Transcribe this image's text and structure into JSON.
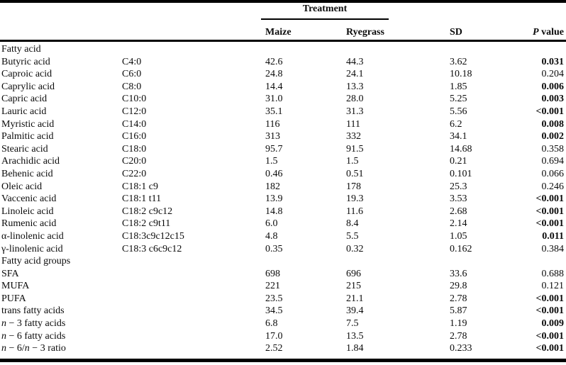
{
  "header": {
    "treatment": "Treatment",
    "col_maize": "Maize",
    "col_ryegrass": "Ryegrass",
    "col_sd": "SD",
    "col_p_italic": "P",
    "col_p_rest": " value"
  },
  "rows": [
    {
      "type": "section",
      "name_parts": [
        {
          "t": "Fatty acid"
        }
      ],
      "notation": "",
      "maize": "",
      "ryegrass": "",
      "sd": "",
      "p": "",
      "p_bold": false
    },
    {
      "type": "data",
      "name_parts": [
        {
          "t": "Butyric acid"
        }
      ],
      "notation": "C4:0",
      "maize": "42.6",
      "ryegrass": "44.3",
      "sd": "3.62",
      "p": "0.031",
      "p_bold": true
    },
    {
      "type": "data",
      "name_parts": [
        {
          "t": "Caproic acid"
        }
      ],
      "notation": "C6:0",
      "maize": "24.8",
      "ryegrass": "24.1",
      "sd": "10.18",
      "p": "0.204",
      "p_bold": false
    },
    {
      "type": "data",
      "name_parts": [
        {
          "t": "Caprylic acid"
        }
      ],
      "notation": "C8:0",
      "maize": "14.4",
      "ryegrass": "13.3",
      "sd": "1.85",
      "p": "0.006",
      "p_bold": true
    },
    {
      "type": "data",
      "name_parts": [
        {
          "t": "Capric acid"
        }
      ],
      "notation": "C10:0",
      "maize": "31.0",
      "ryegrass": "28.0",
      "sd": "5.25",
      "p": "0.003",
      "p_bold": true
    },
    {
      "type": "data",
      "name_parts": [
        {
          "t": "Lauric acid"
        }
      ],
      "notation": "C12:0",
      "maize": "35.1",
      "ryegrass": "31.3",
      "sd": "5.56",
      "p": "<0.001",
      "p_bold": true
    },
    {
      "type": "data",
      "name_parts": [
        {
          "t": "Myristic acid"
        }
      ],
      "notation": "C14:0",
      "maize": "116",
      "ryegrass": "111",
      "sd": "6.2",
      "p": "0.008",
      "p_bold": true
    },
    {
      "type": "data",
      "name_parts": [
        {
          "t": "Palmitic acid"
        }
      ],
      "notation": "C16:0",
      "maize": "313",
      "ryegrass": "332",
      "sd": "34.1",
      "p": "0.002",
      "p_bold": true
    },
    {
      "type": "data",
      "name_parts": [
        {
          "t": "Stearic acid"
        }
      ],
      "notation": "C18:0",
      "maize": "95.7",
      "ryegrass": "91.5",
      "sd": "14.68",
      "p": "0.358",
      "p_bold": false
    },
    {
      "type": "data",
      "name_parts": [
        {
          "t": "Arachidic acid"
        }
      ],
      "notation": "C20:0",
      "maize": "1.5",
      "ryegrass": "1.5",
      "sd": "0.21",
      "p": "0.694",
      "p_bold": false
    },
    {
      "type": "data",
      "name_parts": [
        {
          "t": "Behenic acid"
        }
      ],
      "notation": "C22:0",
      "maize": "0.46",
      "ryegrass": "0.51",
      "sd": "0.101",
      "p": "0.066",
      "p_bold": false
    },
    {
      "type": "data",
      "name_parts": [
        {
          "t": "Oleic acid"
        }
      ],
      "notation": "C18:1 c9",
      "maize": "182",
      "ryegrass": "178",
      "sd": "25.3",
      "p": "0.246",
      "p_bold": false
    },
    {
      "type": "data",
      "name_parts": [
        {
          "t": "Vaccenic acid"
        }
      ],
      "notation": "C18:1 t11",
      "maize": "13.9",
      "ryegrass": "19.3",
      "sd": "3.53",
      "p": "<0.001",
      "p_bold": true
    },
    {
      "type": "data",
      "name_parts": [
        {
          "t": "Linoleic acid"
        }
      ],
      "notation": "C18:2 c9c12",
      "maize": "14.8",
      "ryegrass": "11.6",
      "sd": "2.68",
      "p": "<0.001",
      "p_bold": true
    },
    {
      "type": "data",
      "name_parts": [
        {
          "t": "Rumenic acid"
        }
      ],
      "notation": "C18:2 c9t11",
      "maize": "6.0",
      "ryegrass": "8.4",
      "sd": "2.14",
      "p": "<0.001",
      "p_bold": true
    },
    {
      "type": "data",
      "name_parts": [
        {
          "t": "α-linolenic acid"
        }
      ],
      "notation": "C18:3c9c12c15",
      "maize": "4.8",
      "ryegrass": "5.5",
      "sd": "1.05",
      "p": "0.011",
      "p_bold": true
    },
    {
      "type": "data",
      "name_parts": [
        {
          "t": "γ-linolenic acid"
        }
      ],
      "notation": "C18:3 c6c9c12",
      "maize": "0.35",
      "ryegrass": "0.32",
      "sd": "0.162",
      "p": "0.384",
      "p_bold": false
    },
    {
      "type": "section",
      "name_parts": [
        {
          "t": "Fatty acid groups"
        }
      ],
      "notation": "",
      "maize": "",
      "ryegrass": "",
      "sd": "",
      "p": "",
      "p_bold": false
    },
    {
      "type": "data",
      "name_parts": [
        {
          "t": "SFA"
        }
      ],
      "notation": "",
      "maize": "698",
      "ryegrass": "696",
      "sd": "33.6",
      "p": "0.688",
      "p_bold": false
    },
    {
      "type": "data",
      "name_parts": [
        {
          "t": "MUFA"
        }
      ],
      "notation": "",
      "maize": "221",
      "ryegrass": "215",
      "sd": "29.8",
      "p": "0.121",
      "p_bold": false
    },
    {
      "type": "data",
      "name_parts": [
        {
          "t": "PUFA"
        }
      ],
      "notation": "",
      "maize": "23.5",
      "ryegrass": "21.1",
      "sd": "2.78",
      "p": "<0.001",
      "p_bold": true
    },
    {
      "type": "data",
      "name_parts": [
        {
          "t": "trans fatty acids"
        }
      ],
      "notation": "",
      "maize": "34.5",
      "ryegrass": "39.4",
      "sd": "5.87",
      "p": "<0.001",
      "p_bold": true
    },
    {
      "type": "data",
      "name_parts": [
        {
          "t": "n",
          "i": true
        },
        {
          "t": " − 3 fatty acids"
        }
      ],
      "notation": "",
      "maize": "6.8",
      "ryegrass": "7.5",
      "sd": "1.19",
      "p": "0.009",
      "p_bold": true
    },
    {
      "type": "data",
      "name_parts": [
        {
          "t": "n",
          "i": true
        },
        {
          "t": " − 6 fatty acids"
        }
      ],
      "notation": "",
      "maize": "17.0",
      "ryegrass": "13.5",
      "sd": "2.78",
      "p": "<0.001",
      "p_bold": true
    },
    {
      "type": "data",
      "name_parts": [
        {
          "t": "n",
          "i": true
        },
        {
          "t": " − 6/"
        },
        {
          "t": "n",
          "i": true
        },
        {
          "t": " − 3 ratio"
        }
      ],
      "notation": "",
      "maize": "2.52",
      "ryegrass": "1.84",
      "sd": "0.233",
      "p": "<0.001",
      "p_bold": true
    }
  ]
}
